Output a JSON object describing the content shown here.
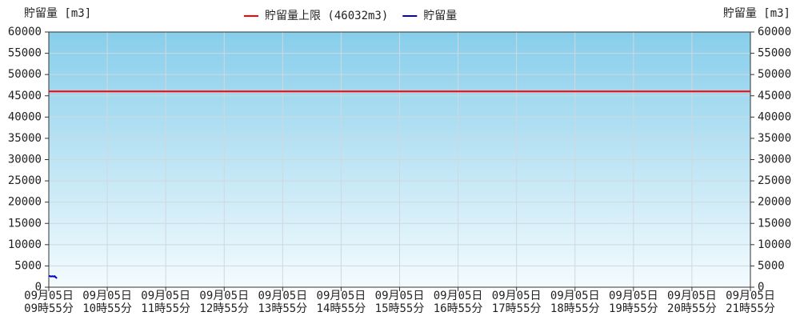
{
  "chart_data": {
    "type": "line",
    "y_label": "貯留量 [m3]",
    "y2_label": "貯留量 [m3]",
    "xlim": [
      0,
      12
    ],
    "xticks": [
      {
        "value": 0,
        "label": [
          "09月05日",
          "09時55分"
        ]
      },
      {
        "value": 1,
        "label": [
          "09月05日",
          "10時55分"
        ]
      },
      {
        "value": 2,
        "label": [
          "09月05日",
          "11時55分"
        ]
      },
      {
        "value": 3,
        "label": [
          "09月05日",
          "12時55分"
        ]
      },
      {
        "value": 4,
        "label": [
          "09月05日",
          "13時55分"
        ]
      },
      {
        "value": 5,
        "label": [
          "09月05日",
          "14時55分"
        ]
      },
      {
        "value": 6,
        "label": [
          "09月05日",
          "15時55分"
        ]
      },
      {
        "value": 7,
        "label": [
          "09月05日",
          "16時55分"
        ]
      },
      {
        "value": 8,
        "label": [
          "09月05日",
          "17時55分"
        ]
      },
      {
        "value": 9,
        "label": [
          "09月05日",
          "18時55分"
        ]
      },
      {
        "value": 10,
        "label": [
          "09月05日",
          "19時55分"
        ]
      },
      {
        "value": 11,
        "label": [
          "09月05日",
          "20時55分"
        ]
      },
      {
        "value": 12,
        "label": [
          "09月05日",
          "21時55分"
        ]
      }
    ],
    "ylim": [
      0,
      60000
    ],
    "yticks": [
      0,
      5000,
      10000,
      15000,
      20000,
      25000,
      30000,
      35000,
      40000,
      45000,
      50000,
      55000,
      60000
    ],
    "grid": true,
    "hlines": [
      {
        "name": "貯留量上限 (46032m3)",
        "value": 46032,
        "color": "#ff0000"
      }
    ],
    "series": [
      {
        "name": "貯留量",
        "color": "#0000cc",
        "x": [
          0,
          0.02,
          0.04,
          0.06,
          0.08,
          0.1,
          0.12,
          0.14
        ],
        "values": [
          2600,
          2600,
          2500,
          2600,
          2500,
          2600,
          2300,
          2100
        ]
      }
    ]
  }
}
